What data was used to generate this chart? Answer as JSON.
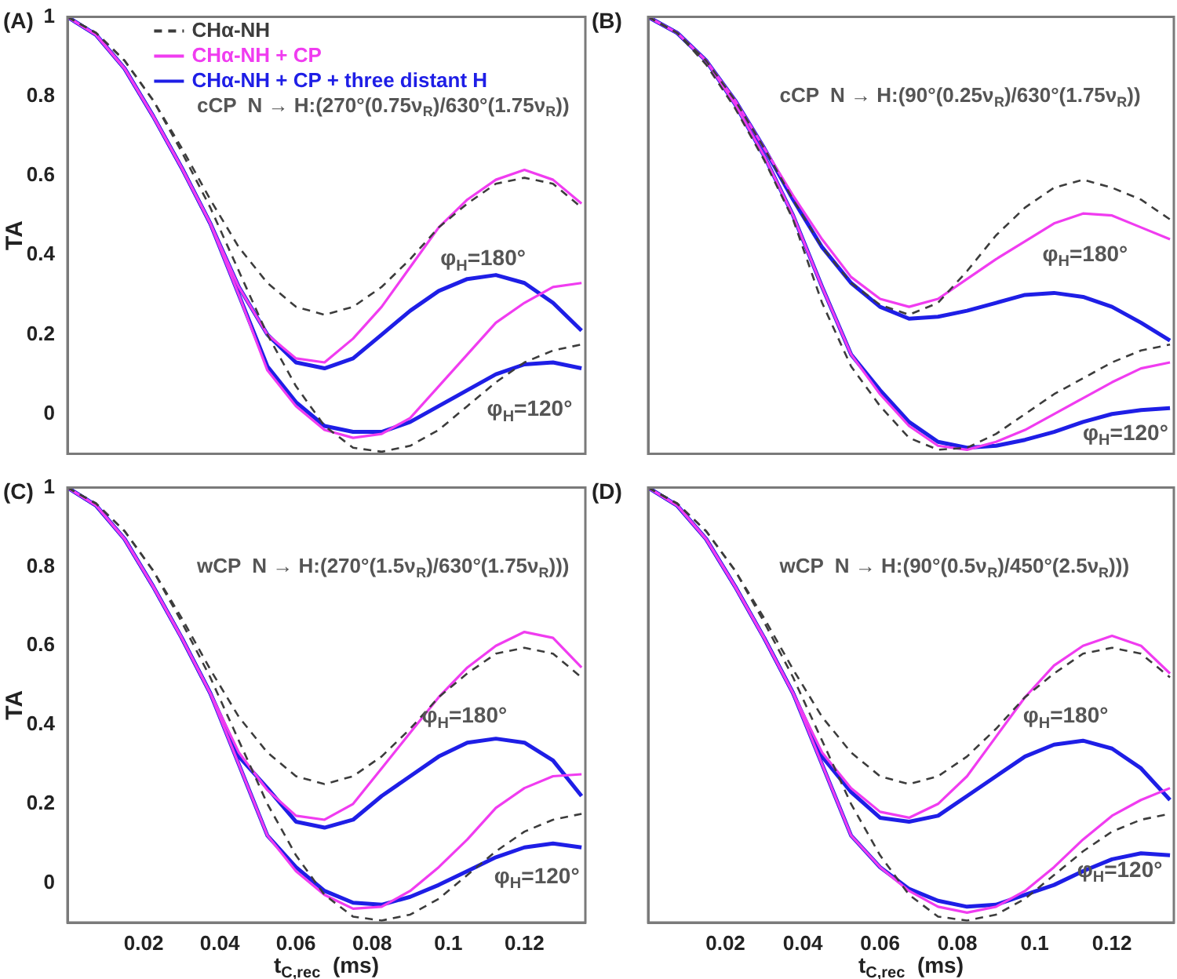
{
  "chart_data": [
    {
      "type": "line",
      "title": "(A)",
      "ylabel": "TA",
      "legend": "top left",
      "marker": "none",
      "tick_labels": "y",
      "xlim": [
        0,
        0.136
      ],
      "ylim": [
        -0.1,
        1
      ],
      "xticks": [
        0.02,
        0.04,
        0.06,
        0.08,
        0.1,
        0.12
      ],
      "yticks": [
        0,
        0.2,
        0.4,
        0.6,
        0.8,
        1
      ],
      "x": [
        0,
        0.0075,
        0.015,
        0.0225,
        0.03,
        0.0375,
        0.045,
        0.0525,
        0.06,
        0.0675,
        0.075,
        0.0825,
        0.09,
        0.0975,
        0.105,
        0.1125,
        0.12,
        0.1275,
        0.135
      ],
      "annotations": [
        "cCP  N → H:(270°(0.75ν$_{R}$)/630°(1.75ν$_{R}$))",
        "φ$_{H}$=180°",
        "φ$_{H}$=120°"
      ],
      "series": [
        {
          "name": "CHα-NH",
          "color": "#3c3c3c",
          "line_style": "dashed",
          "values": [
            1,
            0.96,
            0.89,
            0.79,
            0.67,
            0.54,
            0.42,
            0.33,
            0.27,
            0.25,
            0.27,
            0.32,
            0.39,
            0.47,
            0.53,
            0.58,
            0.595,
            0.58,
            0.52
          ]
        },
        {
          "color": "#3c3c3c",
          "line_style": "dashed",
          "values": [
            1,
            0.96,
            0.89,
            0.79,
            0.66,
            0.52,
            0.36,
            0.2,
            0.07,
            -0.03,
            -0.085,
            -0.095,
            -0.08,
            -0.04,
            0.02,
            0.08,
            0.13,
            0.16,
            0.175
          ]
        },
        {
          "name": "CHα-NH + CP",
          "color": "#f03cf0",
          "values": [
            1,
            0.955,
            0.87,
            0.75,
            0.62,
            0.48,
            0.32,
            0.2,
            0.14,
            0.13,
            0.19,
            0.27,
            0.37,
            0.47,
            0.54,
            0.59,
            0.615,
            0.59,
            0.53
          ]
        },
        {
          "color": "#f03cf0",
          "values": [
            1,
            0.955,
            0.87,
            0.75,
            0.62,
            0.48,
            0.3,
            0.11,
            0.02,
            -0.04,
            -0.06,
            -0.05,
            -0.01,
            0.07,
            0.15,
            0.23,
            0.28,
            0.32,
            0.33
          ]
        },
        {
          "name": "CHα-NH + CP + three distant H",
          "color": "#1e1ee6",
          "values": [
            1,
            0.955,
            0.87,
            0.75,
            0.62,
            0.48,
            0.32,
            0.2,
            0.13,
            0.115,
            0.14,
            0.2,
            0.26,
            0.31,
            0.34,
            0.35,
            0.33,
            0.28,
            0.21
          ]
        },
        {
          "color": "#1e1ee6",
          "values": [
            1,
            0.955,
            0.87,
            0.75,
            0.62,
            0.48,
            0.3,
            0.12,
            0.03,
            -0.03,
            -0.045,
            -0.045,
            -0.02,
            0.02,
            0.06,
            0.1,
            0.125,
            0.13,
            0.115
          ]
        }
      ]
    },
    {
      "type": "line",
      "title": "(B)",
      "marker": "none",
      "tick_labels": false,
      "xlim": [
        0,
        0.136
      ],
      "ylim": [
        -0.1,
        1
      ],
      "xticks": [
        0.02,
        0.04,
        0.06,
        0.08,
        0.1,
        0.12
      ],
      "yticks": [
        0,
        0.2,
        0.4,
        0.6,
        0.8,
        1
      ],
      "x": [
        0,
        0.0075,
        0.015,
        0.0225,
        0.03,
        0.0375,
        0.045,
        0.0525,
        0.06,
        0.0675,
        0.075,
        0.0825,
        0.09,
        0.0975,
        0.105,
        0.1125,
        0.12,
        0.1275,
        0.135
      ],
      "annotations": [
        "cCP  N → H:(90°(0.25ν$_{R}$)/630°(1.75ν$_{R}$))",
        "φ$_{H}$=180°",
        "φ$_{H}$=120°"
      ],
      "series": [
        {
          "color": "#3c3c3c",
          "line_style": "dashed",
          "values": [
            1,
            0.96,
            0.89,
            0.79,
            0.67,
            0.54,
            0.42,
            0.33,
            0.275,
            0.25,
            0.28,
            0.36,
            0.45,
            0.52,
            0.57,
            0.59,
            0.57,
            0.54,
            0.49
          ]
        },
        {
          "color": "#3c3c3c",
          "line_style": "dashed",
          "values": [
            1,
            0.96,
            0.88,
            0.77,
            0.64,
            0.49,
            0.28,
            0.12,
            0.02,
            -0.06,
            -0.09,
            -0.085,
            -0.05,
            0,
            0.05,
            0.09,
            0.13,
            0.16,
            0.175
          ]
        },
        {
          "color": "#f03cf0",
          "values": [
            1,
            0.96,
            0.89,
            0.79,
            0.67,
            0.55,
            0.44,
            0.345,
            0.29,
            0.27,
            0.29,
            0.34,
            0.39,
            0.435,
            0.48,
            0.505,
            0.5,
            0.47,
            0.44
          ]
        },
        {
          "color": "#f03cf0",
          "values": [
            1,
            0.96,
            0.89,
            0.78,
            0.65,
            0.5,
            0.32,
            0.15,
            0.05,
            -0.03,
            -0.08,
            -0.09,
            -0.07,
            -0.04,
            0,
            0.04,
            0.08,
            0.115,
            0.13
          ]
        },
        {
          "color": "#1e1ee6",
          "values": [
            1,
            0.96,
            0.89,
            0.79,
            0.67,
            0.54,
            0.42,
            0.33,
            0.27,
            0.24,
            0.245,
            0.26,
            0.28,
            0.3,
            0.305,
            0.295,
            0.27,
            0.23,
            0.185
          ]
        },
        {
          "color": "#1e1ee6",
          "values": [
            1,
            0.96,
            0.89,
            0.78,
            0.65,
            0.5,
            0.32,
            0.15,
            0.06,
            -0.02,
            -0.07,
            -0.085,
            -0.08,
            -0.065,
            -0.045,
            -0.02,
            0,
            0.01,
            0.015
          ]
        }
      ]
    },
    {
      "type": "line",
      "title": "(C)",
      "ylabel": "TA",
      "xlabel": "t$_{C,rec}$  (ms)",
      "marker": "none",
      "xlim": [
        0,
        0.136
      ],
      "ylim": [
        -0.1,
        1
      ],
      "xticks": [
        0.02,
        0.04,
        0.06,
        0.08,
        0.1,
        0.12
      ],
      "yticks": [
        0,
        0.2,
        0.4,
        0.6,
        0.8,
        1
      ],
      "x": [
        0,
        0.0075,
        0.015,
        0.0225,
        0.03,
        0.0375,
        0.045,
        0.0525,
        0.06,
        0.0675,
        0.075,
        0.0825,
        0.09,
        0.0975,
        0.105,
        0.1125,
        0.12,
        0.1275,
        0.135
      ],
      "annotations": [
        "wCP  N → H:(270°(1.5ν$_{R}$)/630°(1.75ν$_{R}$)))",
        "φ$_{H}$=180°",
        "φ$_{H}$=120°"
      ],
      "series": [
        {
          "color": "#3c3c3c",
          "line_style": "dashed",
          "values": [
            1,
            0.96,
            0.89,
            0.79,
            0.67,
            0.54,
            0.42,
            0.33,
            0.27,
            0.25,
            0.27,
            0.32,
            0.39,
            0.47,
            0.53,
            0.58,
            0.595,
            0.58,
            0.52
          ]
        },
        {
          "color": "#3c3c3c",
          "line_style": "dashed",
          "values": [
            1,
            0.96,
            0.89,
            0.79,
            0.66,
            0.52,
            0.36,
            0.2,
            0.07,
            -0.03,
            -0.085,
            -0.095,
            -0.08,
            -0.04,
            0.02,
            0.08,
            0.13,
            0.16,
            0.175
          ]
        },
        {
          "color": "#f03cf0",
          "values": [
            1,
            0.955,
            0.87,
            0.75,
            0.62,
            0.48,
            0.33,
            0.235,
            0.17,
            0.16,
            0.2,
            0.29,
            0.38,
            0.47,
            0.545,
            0.6,
            0.635,
            0.62,
            0.545
          ]
        },
        {
          "color": "#f03cf0",
          "values": [
            1,
            0.955,
            0.87,
            0.75,
            0.62,
            0.48,
            0.3,
            0.12,
            0.03,
            -0.03,
            -0.065,
            -0.06,
            -0.02,
            0.04,
            0.11,
            0.19,
            0.24,
            0.27,
            0.275
          ]
        },
        {
          "color": "#1e1ee6",
          "values": [
            1,
            0.955,
            0.87,
            0.75,
            0.62,
            0.48,
            0.32,
            0.24,
            0.155,
            0.14,
            0.16,
            0.22,
            0.27,
            0.32,
            0.355,
            0.365,
            0.355,
            0.31,
            0.22
          ]
        },
        {
          "color": "#1e1ee6",
          "values": [
            1,
            0.955,
            0.87,
            0.75,
            0.62,
            0.48,
            0.3,
            0.12,
            0.04,
            -0.02,
            -0.05,
            -0.055,
            -0.035,
            -0.005,
            0.03,
            0.065,
            0.09,
            0.1,
            0.09
          ]
        }
      ]
    },
    {
      "type": "line",
      "title": "(D)",
      "xlabel": "t$_{C,rec}$  (ms)",
      "marker": "none",
      "tick_labels": "x",
      "xlim": [
        0,
        0.136
      ],
      "ylim": [
        -0.1,
        1
      ],
      "xticks": [
        0.02,
        0.04,
        0.06,
        0.08,
        0.1,
        0.12
      ],
      "yticks": [
        0,
        0.2,
        0.4,
        0.6,
        0.8,
        1
      ],
      "x": [
        0,
        0.0075,
        0.015,
        0.0225,
        0.03,
        0.0375,
        0.045,
        0.0525,
        0.06,
        0.0675,
        0.075,
        0.0825,
        0.09,
        0.0975,
        0.105,
        0.1125,
        0.12,
        0.1275,
        0.135
      ],
      "annotations": [
        "wCP  N → H:(90°(0.5ν$_{R}$)/450°(2.5ν$_{R}$)))",
        "φ$_{H}$=180°",
        "φ$_{H}$=120°"
      ],
      "series": [
        {
          "color": "#3c3c3c",
          "line_style": "dashed",
          "values": [
            1,
            0.96,
            0.89,
            0.79,
            0.67,
            0.54,
            0.42,
            0.33,
            0.27,
            0.25,
            0.27,
            0.32,
            0.39,
            0.47,
            0.53,
            0.58,
            0.595,
            0.58,
            0.52
          ]
        },
        {
          "color": "#3c3c3c",
          "line_style": "dashed",
          "values": [
            1,
            0.96,
            0.89,
            0.79,
            0.66,
            0.52,
            0.36,
            0.2,
            0.07,
            -0.03,
            -0.085,
            -0.095,
            -0.08,
            -0.04,
            0.02,
            0.08,
            0.13,
            0.16,
            0.175
          ]
        },
        {
          "color": "#f03cf0",
          "values": [
            1,
            0.955,
            0.87,
            0.75,
            0.62,
            0.48,
            0.33,
            0.24,
            0.18,
            0.165,
            0.2,
            0.27,
            0.37,
            0.47,
            0.55,
            0.6,
            0.625,
            0.6,
            0.53
          ]
        },
        {
          "color": "#f03cf0",
          "values": [
            1,
            0.955,
            0.87,
            0.75,
            0.62,
            0.48,
            0.3,
            0.12,
            0.04,
            -0.02,
            -0.06,
            -0.075,
            -0.06,
            -0.02,
            0.04,
            0.11,
            0.17,
            0.21,
            0.24
          ]
        },
        {
          "color": "#1e1ee6",
          "values": [
            1,
            0.955,
            0.87,
            0.75,
            0.62,
            0.48,
            0.32,
            0.23,
            0.165,
            0.155,
            0.17,
            0.22,
            0.27,
            0.32,
            0.35,
            0.36,
            0.34,
            0.29,
            0.21
          ]
        },
        {
          "color": "#1e1ee6",
          "values": [
            1,
            0.955,
            0.87,
            0.75,
            0.62,
            0.48,
            0.3,
            0.12,
            0.04,
            -0.015,
            -0.045,
            -0.06,
            -0.055,
            -0.03,
            -0.005,
            0.03,
            0.06,
            0.075,
            0.07
          ]
        }
      ]
    }
  ]
}
